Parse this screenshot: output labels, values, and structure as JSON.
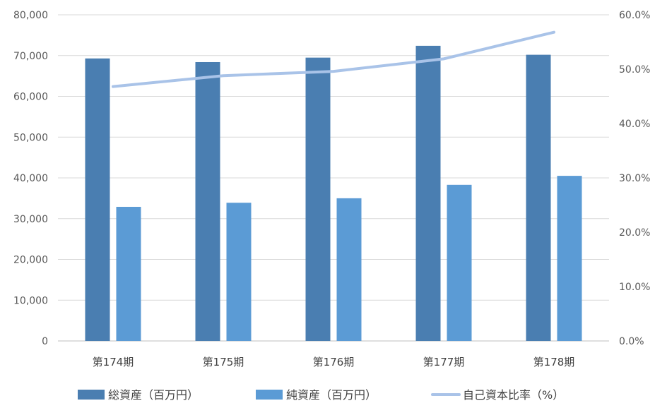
{
  "chart_data": {
    "type": "bar",
    "categories": [
      "第174期",
      "第175期",
      "第176期",
      "第177期",
      "第178期"
    ],
    "series": [
      {
        "name": "総資産（百万円）",
        "kind": "bar",
        "axis": "left",
        "color": "#4a7eb1",
        "values": [
          69300,
          68400,
          69500,
          72400,
          70200
        ]
      },
      {
        "name": "純資産（百万円）",
        "kind": "bar",
        "axis": "left",
        "color": "#5b9bd5",
        "values": [
          32900,
          33900,
          35000,
          38300,
          40500
        ]
      },
      {
        "name": "自己資本比率（%）",
        "kind": "line",
        "axis": "right",
        "color": "#a9c3e8",
        "values": [
          46.8,
          48.8,
          49.6,
          51.9,
          56.8
        ]
      }
    ],
    "y_left": {
      "range": [
        0,
        80000
      ],
      "ticks": [
        0,
        10000,
        20000,
        30000,
        40000,
        50000,
        60000,
        70000,
        80000
      ],
      "tick_labels": [
        "0",
        "10,000",
        "20,000",
        "30,000",
        "40,000",
        "50,000",
        "60,000",
        "70,000",
        "80,000"
      ]
    },
    "y_right": {
      "range": [
        0,
        60
      ],
      "ticks": [
        0,
        10,
        20,
        30,
        40,
        50,
        60
      ],
      "tick_labels": [
        "0.0%",
        "10.0%",
        "20.0%",
        "30.0%",
        "40.0%",
        "50.0%",
        "60.0%"
      ]
    },
    "grid": true,
    "legend_position": "bottom"
  }
}
